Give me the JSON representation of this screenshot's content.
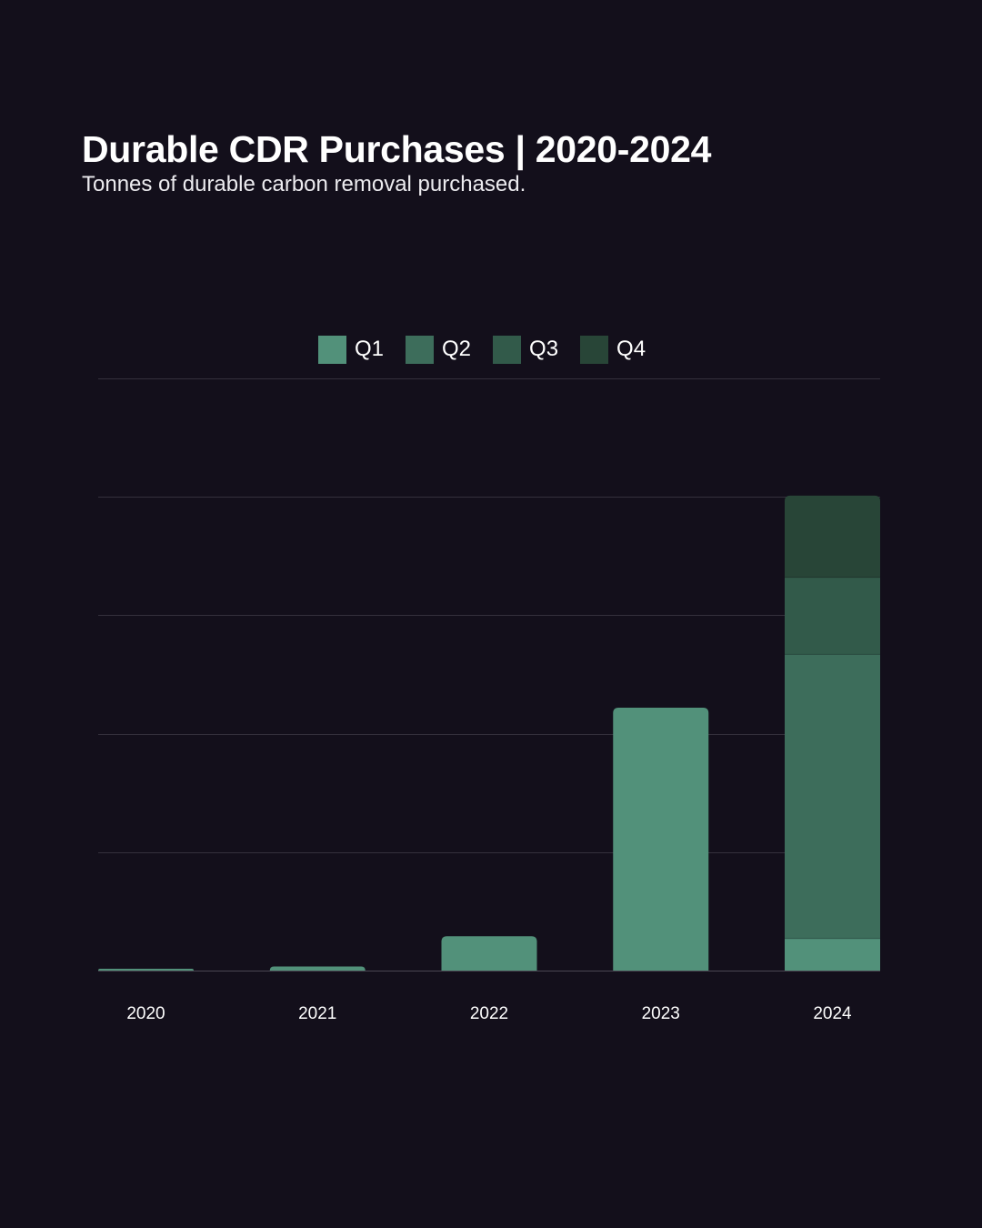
{
  "title": "Durable CDR Purchases | 2020-2024",
  "subtitle": "Tonnes of durable carbon removal purchased.",
  "colors": {
    "background": "#130f1b",
    "grid": "#34303c",
    "baseline": "#4a4652",
    "Q1": "#52917a",
    "Q2": "#3d6d5b",
    "Q3": "#325a4a",
    "Q4": "#284537"
  },
  "chart_data": {
    "type": "bar",
    "stacked": true,
    "categories": [
      "2020",
      "2021",
      "2022",
      "2023",
      "2024"
    ],
    "series": [
      {
        "name": "Q1",
        "values": [
          0.1,
          0.35,
          2.9,
          22.2,
          2.7
        ]
      },
      {
        "name": "Q2",
        "values": [
          0,
          0,
          0,
          0,
          24.0
        ]
      },
      {
        "name": "Q3",
        "values": [
          0,
          0,
          0,
          0,
          6.5
        ]
      },
      {
        "name": "Q4",
        "values": [
          0,
          0,
          0,
          0,
          6.9
        ]
      }
    ],
    "ylim": [
      0,
      50
    ],
    "grid": true,
    "legend": "top-center",
    "xlabel": "",
    "ylabel": ""
  }
}
